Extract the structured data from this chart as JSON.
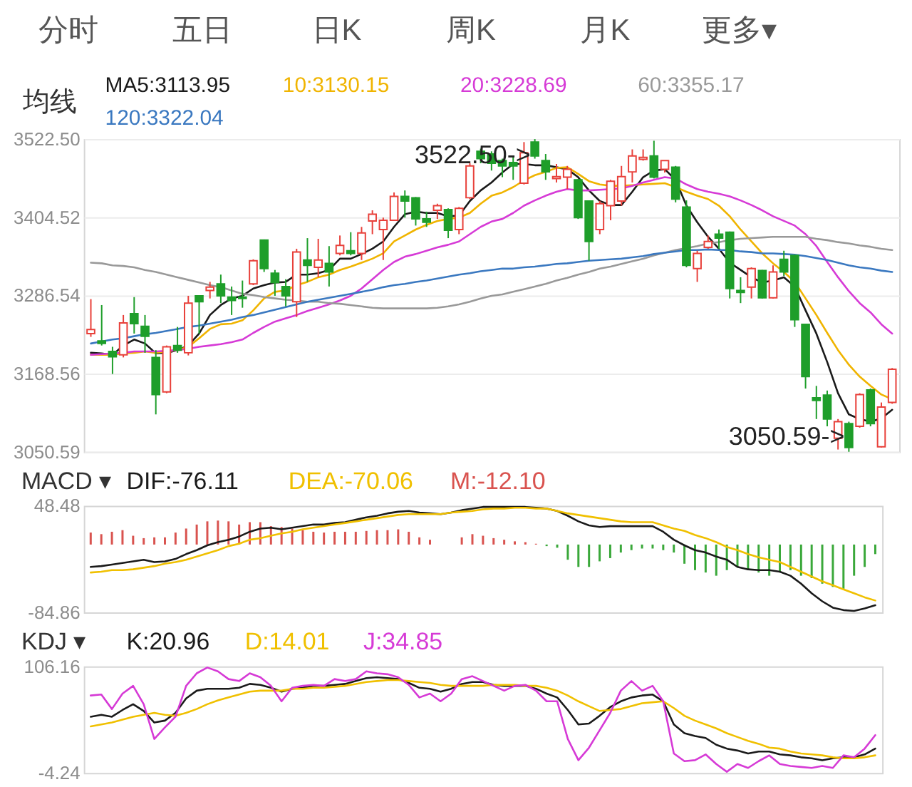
{
  "chart_data": [
    {
      "type": "candlestick",
      "annotations": [
        "分时",
        "五日",
        "日K",
        "周K",
        "月K",
        "更多▾",
        "3522.50->",
        "3050.59->"
      ],
      "legend_title": "均线",
      "legend": "top left",
      "grid": "y",
      "tick_labels": "y",
      "categories": [
        null,
        null,
        null,
        null,
        null,
        null,
        null,
        null,
        null,
        null,
        null,
        null,
        null,
        null,
        null,
        null,
        null,
        null,
        null,
        null,
        null,
        null,
        null,
        null,
        null,
        null,
        null,
        null,
        null,
        null,
        null,
        null,
        null,
        null,
        null,
        null,
        null,
        null,
        null,
        null,
        null,
        null,
        null,
        null,
        null,
        null,
        null,
        null,
        null,
        null,
        null,
        null,
        null,
        null,
        null,
        null,
        null,
        null,
        null,
        null,
        null,
        null,
        null,
        null,
        null,
        null,
        null,
        null,
        null,
        null,
        null,
        null,
        null,
        null,
        null
      ],
      "ohlc": [
        [
          3229,
          3281,
          3224,
          3235
        ],
        [
          3218,
          3272,
          3211,
          3214
        ],
        [
          3202,
          3209,
          3168,
          3194
        ],
        [
          3197,
          3257,
          3193,
          3245
        ],
        [
          3259,
          3284,
          3229,
          3244
        ],
        [
          3240,
          3257,
          3200,
          3225
        ],
        [
          3193,
          3204,
          3107,
          3137
        ],
        [
          3141,
          3211,
          3139,
          3209
        ],
        [
          3211,
          3239,
          3200,
          3204
        ],
        [
          3200,
          3286,
          3196,
          3275
        ],
        [
          3286,
          3287,
          3229,
          3277
        ],
        [
          3294,
          3307,
          3282,
          3299
        ],
        [
          3304,
          3318,
          3275,
          3286
        ],
        [
          3284,
          3300,
          3257,
          3279
        ],
        [
          3284,
          3309,
          3268,
          3282
        ],
        [
          3304,
          3341,
          3302,
          3339
        ],
        [
          3370,
          3371,
          3322,
          3327
        ],
        [
          3320,
          3325,
          3286,
          3306
        ],
        [
          3300,
          3311,
          3270,
          3286
        ],
        [
          3277,
          3357,
          3254,
          3352
        ],
        [
          3340,
          3373,
          3307,
          3332
        ],
        [
          3329,
          3372,
          3314,
          3340
        ],
        [
          3335,
          3361,
          3300,
          3322
        ],
        [
          3350,
          3377,
          3347,
          3362
        ],
        [
          3354,
          3382,
          3347,
          3350
        ],
        [
          3350,
          3390,
          3340,
          3381
        ],
        [
          3399,
          3415,
          3379,
          3409
        ],
        [
          3386,
          3404,
          3340,
          3400
        ],
        [
          3400,
          3442,
          3399,
          3436
        ],
        [
          3436,
          3445,
          3404,
          3429
        ],
        [
          3434,
          3435,
          3392,
          3402
        ],
        [
          3402,
          3413,
          3390,
          3397
        ],
        [
          3415,
          3425,
          3402,
          3422
        ],
        [
          3416,
          3418,
          3373,
          3385
        ],
        [
          3386,
          3420,
          3379,
          3418
        ],
        [
          3434,
          3486,
          3432,
          3482
        ],
        [
          3504,
          3508,
          3486,
          3493
        ],
        [
          3500,
          3504,
          3475,
          3486
        ],
        [
          3490,
          3493,
          3465,
          3482
        ],
        [
          3487,
          3497,
          3461,
          3482
        ],
        [
          3456,
          3518,
          3454,
          3502
        ],
        [
          3518,
          3522.5,
          3493,
          3497
        ],
        [
          3490,
          3500,
          3461,
          3473
        ],
        [
          3463,
          3485,
          3457,
          3466
        ],
        [
          3465,
          3482,
          3447,
          3477
        ],
        [
          3461,
          3462,
          3402,
          3404
        ],
        [
          3429,
          3430,
          3339,
          3368
        ],
        [
          3386,
          3429,
          3379,
          3425
        ],
        [
          3422,
          3461,
          3400,
          3459
        ],
        [
          3429,
          3482,
          3422,
          3466
        ],
        [
          3473,
          3507,
          3457,
          3497
        ],
        [
          3492,
          3507,
          3490,
          3495
        ],
        [
          3497,
          3520,
          3463,
          3465
        ],
        [
          3477,
          3490,
          3472,
          3490
        ],
        [
          3480,
          3482,
          3427,
          3432
        ],
        [
          3420,
          3430,
          3329,
          3332
        ],
        [
          3327,
          3354,
          3307,
          3350
        ],
        [
          3359,
          3377,
          3357,
          3368
        ],
        [
          3379,
          3386,
          3357,
          3373
        ],
        [
          3382,
          3383,
          3282,
          3297
        ],
        [
          3294,
          3314,
          3275,
          3291
        ],
        [
          3299,
          3329,
          3282,
          3327
        ],
        [
          3324,
          3325,
          3282,
          3283
        ],
        [
          3283,
          3332,
          3282,
          3322
        ],
        [
          3341,
          3354,
          3316,
          3322
        ],
        [
          3347,
          3348,
          3239,
          3250
        ],
        [
          3243,
          3244,
          3146,
          3164
        ],
        [
          3132,
          3150,
          3100,
          3128
        ],
        [
          3136,
          3143,
          3089,
          3100
        ],
        [
          3071,
          3100,
          3054,
          3096
        ],
        [
          3093,
          3096,
          3050.59,
          3057
        ],
        [
          3089,
          3139,
          3087,
          3137
        ],
        [
          3144,
          3146,
          3089,
          3093
        ],
        [
          3058,
          3125,
          3057,
          3118
        ],
        [
          3125,
          3177,
          3123,
          3175
        ]
      ],
      "colors": [
        "#e8403a",
        "#1e9e2a",
        "#1e9e2a",
        "#e8403a",
        "#1e9e2a",
        "#1e9e2a",
        "#1e9e2a",
        "#e8403a",
        "#1e9e2a",
        "#e8403a",
        "#1e9e2a",
        "#e8403a",
        "#1e9e2a",
        "#1e9e2a",
        "#1e9e2a",
        "#e8403a",
        "#1e9e2a",
        "#1e9e2a",
        "#1e9e2a",
        "#e8403a",
        "#1e9e2a",
        "#e8403a",
        "#1e9e2a",
        "#e8403a",
        "#1e9e2a",
        "#e8403a",
        "#e8403a",
        "#e8403a",
        "#e8403a",
        "#1e9e2a",
        "#1e9e2a",
        "#1e9e2a",
        "#e8403a",
        "#1e9e2a",
        "#e8403a",
        "#e8403a",
        "#1e9e2a",
        "#1e9e2a",
        "#1e9e2a",
        "#1e9e2a",
        "#e8403a",
        "#1e9e2a",
        "#1e9e2a",
        "#e8403a",
        "#e8403a",
        "#1e9e2a",
        "#1e9e2a",
        "#e8403a",
        "#e8403a",
        "#e8403a",
        "#e8403a",
        "#e8403a",
        "#1e9e2a",
        "#e8403a",
        "#1e9e2a",
        "#1e9e2a",
        "#e8403a",
        "#e8403a",
        "#1e9e2a",
        "#1e9e2a",
        "#1e9e2a",
        "#e8403a",
        "#1e9e2a",
        "#e8403a",
        "#1e9e2a",
        "#1e9e2a",
        "#1e9e2a",
        "#1e9e2a",
        "#1e9e2a",
        "#e8403a",
        "#1e9e2a",
        "#e8403a",
        "#1e9e2a",
        "#e8403a",
        "#e8403a"
      ],
      "series": [
        {
          "name": "MA5:3113.95",
          "type": "line",
          "color": "#1a1a1a",
          "values": [
            3200,
            3199,
            3197,
            3211,
            3220,
            3214,
            3199,
            3200,
            3204,
            3211,
            3229,
            3257,
            3272,
            3282,
            3286,
            3297,
            3302,
            3306,
            3307,
            3318,
            3318,
            3320,
            3325,
            3342,
            3342,
            3349,
            3357,
            3368,
            3390,
            3409,
            3413,
            3411,
            3411,
            3406,
            3407,
            3429,
            3445,
            3457,
            3472,
            3485,
            3485,
            3483,
            3483,
            3480,
            3477,
            3465,
            3445,
            3429,
            3423,
            3423,
            3443,
            3465,
            3475,
            3477,
            3461,
            3422,
            3397,
            3375,
            3357,
            3336,
            3325,
            3314,
            3306,
            3309,
            3314,
            3300,
            3264,
            3229,
            3186,
            3139,
            3107,
            3100,
            3096,
            3101,
            3114
          ]
        },
        {
          "name": "10:3130.15",
          "type": "line",
          "color": "#f0b400",
          "values": [
            3197,
            3197,
            3197,
            3199,
            3200,
            3202,
            3200,
            3202,
            3204,
            3209,
            3222,
            3236,
            3243,
            3244,
            3249,
            3264,
            3282,
            3292,
            3294,
            3302,
            3307,
            3314,
            3318,
            3325,
            3330,
            3336,
            3342,
            3350,
            3368,
            3377,
            3386,
            3393,
            3399,
            3402,
            3404,
            3411,
            3425,
            3437,
            3442,
            3450,
            3460,
            3468,
            3473,
            3479,
            3480,
            3470,
            3459,
            3454,
            3452,
            3452,
            3453,
            3454,
            3455,
            3456,
            3450,
            3443,
            3437,
            3432,
            3422,
            3406,
            3386,
            3368,
            3350,
            3335,
            3322,
            3307,
            3282,
            3257,
            3230,
            3204,
            3182,
            3164,
            3150,
            3137,
            3130
          ]
        },
        {
          "name": "20:3228.69",
          "type": "line",
          "color": "#d63ad6",
          "values": [
            3197,
            3198,
            3199,
            3200,
            3202,
            3202,
            3202,
            3203,
            3204,
            3206,
            3209,
            3211,
            3213,
            3216,
            3220,
            3230,
            3239,
            3247,
            3252,
            3257,
            3263,
            3268,
            3273,
            3279,
            3286,
            3297,
            3311,
            3325,
            3337,
            3345,
            3349,
            3354,
            3359,
            3363,
            3368,
            3379,
            3390,
            3398,
            3402,
            3411,
            3422,
            3430,
            3437,
            3443,
            3447,
            3445,
            3445,
            3446,
            3447,
            3448,
            3452,
            3457,
            3461,
            3465,
            3463,
            3454,
            3447,
            3443,
            3440,
            3436,
            3430,
            3423,
            3415,
            3406,
            3399,
            3392,
            3379,
            3361,
            3337,
            3314,
            3293,
            3275,
            3261,
            3243,
            3229
          ]
        },
        {
          "name": "60:3355.17",
          "type": "line",
          "color": "#999999",
          "values": [
            3336,
            3335,
            3332,
            3331,
            3329,
            3325,
            3322,
            3318,
            3314,
            3310,
            3306,
            3302,
            3299,
            3294,
            3289,
            3287,
            3284,
            3282,
            3280,
            3279,
            3277,
            3277,
            3275,
            3274,
            3272,
            3270,
            3268,
            3267,
            3267,
            3267,
            3267,
            3267,
            3268,
            3270,
            3273,
            3277,
            3282,
            3286,
            3288,
            3292,
            3296,
            3300,
            3304,
            3309,
            3313,
            3318,
            3322,
            3327,
            3330,
            3334,
            3338,
            3342,
            3347,
            3351,
            3355,
            3358,
            3361,
            3365,
            3367,
            3370,
            3372,
            3373,
            3374,
            3375,
            3375,
            3375,
            3375,
            3372,
            3370,
            3367,
            3365,
            3362,
            3360,
            3357,
            3355
          ]
        },
        {
          "name": "120:3322.04",
          "type": "line",
          "color": "#3a78c0",
          "values": [
            3214,
            3217,
            3220,
            3222,
            3225,
            3228,
            3230,
            3233,
            3236,
            3239,
            3241,
            3244,
            3247,
            3250,
            3254,
            3257,
            3261,
            3265,
            3269,
            3273,
            3277,
            3280,
            3283,
            3286,
            3289,
            3292,
            3295,
            3299,
            3302,
            3304,
            3307,
            3309,
            3312,
            3315,
            3318,
            3320,
            3323,
            3325,
            3327,
            3327,
            3329,
            3330,
            3332,
            3334,
            3335,
            3337,
            3339,
            3340,
            3341,
            3342,
            3344,
            3346,
            3349,
            3351,
            3353,
            3355,
            3355,
            3356,
            3355,
            3355,
            3353,
            3352,
            3350,
            3350,
            3349,
            3348,
            3346,
            3343,
            3340,
            3336,
            3332,
            3329,
            3327,
            3324,
            3322
          ]
        }
      ],
      "ylim": [
        3050.59,
        3522.5
      ],
      "yticks": [
        3050.59,
        3168.56,
        3286.54,
        3404.52,
        {
          "value": 3522.5,
          "label": "3522.50"
        }
      ]
    },
    {
      "type": "line",
      "title": "MACD ▾",
      "legend": "top left",
      "tick_labels": "y",
      "categories": [
        null,
        null,
        null,
        null,
        null,
        null,
        null,
        null,
        null,
        null,
        null,
        null,
        null,
        null,
        null,
        null,
        null,
        null,
        null,
        null,
        null,
        null,
        null,
        null,
        null,
        null,
        null,
        null,
        null,
        null,
        null,
        null,
        null,
        null,
        null,
        null,
        null,
        null,
        null,
        null,
        null,
        null,
        null,
        null,
        null,
        null,
        null,
        null,
        null,
        null,
        null,
        null,
        null,
        null,
        null,
        null,
        null,
        null,
        null,
        null,
        null,
        null,
        null,
        null,
        null,
        null,
        null,
        null,
        null,
        null,
        null,
        null,
        null,
        null,
        null
      ],
      "series": [
        {
          "name": "DIF:-76.11",
          "color": "#1a1a1a",
          "values": [
            -28,
            -27,
            -25,
            -23,
            -21,
            -19,
            -22,
            -21,
            -18,
            -12,
            -7,
            -1,
            3,
            6,
            10,
            16,
            20,
            21,
            19,
            21,
            23,
            25,
            25,
            27,
            28,
            31,
            34,
            36,
            39,
            41,
            42,
            40,
            39,
            38,
            40,
            43,
            45,
            47,
            47,
            47,
            47,
            47,
            46,
            45,
            42,
            36,
            29,
            24,
            22,
            23,
            23,
            23,
            23,
            23,
            16,
            6,
            -1,
            -7,
            -10,
            -15,
            -19,
            -28,
            -31,
            -32,
            -32,
            -34,
            -39,
            -49,
            -61,
            -71,
            -79,
            -82,
            -83,
            -80,
            -76
          ]
        },
        {
          "name": "DEA:-70.06",
          "color": "#f0c000",
          "values": [
            -35,
            -34,
            -32,
            -32,
            -31,
            -29,
            -27,
            -24,
            -22,
            -19,
            -15,
            -11,
            -7,
            -2,
            1,
            6,
            8,
            11,
            14,
            16,
            19,
            21,
            23,
            25,
            27,
            29,
            31,
            33,
            35,
            37,
            38,
            38,
            38,
            38,
            40,
            41,
            42,
            44,
            45,
            45,
            46,
            46,
            45,
            45,
            42,
            39,
            37,
            35,
            33,
            31,
            29,
            28,
            28,
            28,
            24,
            20,
            17,
            12,
            8,
            3,
            -3,
            -7,
            -12,
            -16,
            -19,
            -22,
            -28,
            -34,
            -40,
            -46,
            -51,
            -56,
            -61,
            -66,
            -70
          ]
        },
        {
          "name": "M:-12.10",
          "type": "bar",
          "color": "#d9534f",
          "colors": [
            "#d9534f",
            "#d9534f",
            "#d9534f",
            "#d9534f",
            "#d9534f",
            "#d9534f",
            "#d9534f",
            "#d9534f",
            "#d9534f",
            "#d9534f",
            "#d9534f",
            "#d9534f",
            "#d9534f",
            "#d9534f",
            "#d9534f",
            "#d9534f",
            "#d9534f",
            "#d9534f",
            "#d9534f",
            "#d9534f",
            "#d9534f",
            "#d9534f",
            "#d9534f",
            "#d9534f",
            "#d9534f",
            "#d9534f",
            "#d9534f",
            "#d9534f",
            "#d9534f",
            "#d9534f",
            "#d9534f",
            "#d9534f",
            "#d9534f",
            "#d9534f",
            "#d9534f",
            "#d9534f",
            "#d9534f",
            "#d9534f",
            "#d9534f",
            "#d9534f",
            "#d9534f",
            "#d9534f",
            "#d9534f",
            "#3aa83a",
            "#3aa83a",
            "#3aa83a",
            "#3aa83a",
            "#3aa83a",
            "#3aa83a",
            "#3aa83a",
            "#3aa83a",
            "#3aa83a",
            "#3aa83a",
            "#3aa83a",
            "#3aa83a",
            "#3aa83a",
            "#3aa83a",
            "#3aa83a",
            "#3aa83a",
            "#3aa83a",
            "#3aa83a",
            "#3aa83a",
            "#3aa83a",
            "#3aa83a",
            "#3aa83a",
            "#3aa83a",
            "#3aa83a",
            "#3aa83a",
            "#3aa83a",
            "#3aa83a",
            "#3aa83a",
            "#3aa83a",
            "#3aa83a",
            "#3aa83a",
            "#3aa83a"
          ],
          "values": [
            15,
            13,
            16,
            18,
            11,
            8,
            9,
            9,
            15,
            20,
            25,
            29,
            30,
            29,
            25,
            28,
            28,
            23,
            22,
            20,
            18,
            16,
            15,
            16,
            16,
            16,
            17,
            18,
            18,
            19,
            16,
            9,
            6,
            null,
            null,
            9,
            13,
            11,
            8,
            6,
            4,
            3,
            1,
            -2,
            -4,
            -19,
            -28,
            -28,
            -21,
            -17,
            -10,
            -7,
            -5,
            -5,
            -7,
            -10,
            -24,
            -32,
            -35,
            -39,
            -32,
            -28,
            -32,
            -35,
            -39,
            -35,
            -32,
            -39,
            -42,
            -49,
            -53,
            -56,
            -39,
            -28,
            -12
          ]
        }
      ],
      "ylim": [
        -84.86,
        48.48
      ],
      "yticks": [
        -84.86,
        48.48
      ]
    },
    {
      "type": "line",
      "title": "KDJ ▾",
      "legend": "top left",
      "tick_labels": "y",
      "categories": [
        null,
        null,
        null,
        null,
        null,
        null,
        null,
        null,
        null,
        null,
        null,
        null,
        null,
        null,
        null,
        null,
        null,
        null,
        null,
        null,
        null,
        null,
        null,
        null,
        null,
        null,
        null,
        null,
        null,
        null,
        null,
        null,
        null,
        null,
        null,
        null,
        null,
        null,
        null,
        null,
        null,
        null,
        null,
        null,
        null,
        null,
        null,
        null,
        null,
        null,
        null,
        null,
        null,
        null,
        null,
        null,
        null,
        null,
        null,
        null,
        null,
        null,
        null,
        null,
        null,
        null,
        null,
        null,
        null,
        null,
        null,
        null,
        null,
        null,
        null
      ],
      "series": [
        {
          "name": "K:20.96",
          "color": "#1a1a1a",
          "values": [
            54,
            56,
            54,
            61,
            67,
            60,
            48,
            50,
            58,
            73,
            81,
            83,
            83,
            83,
            84,
            88,
            87,
            84,
            80,
            83,
            84,
            86,
            86,
            87,
            88,
            91,
            94,
            95,
            94,
            93,
            89,
            84,
            83,
            80,
            83,
            88,
            90,
            90,
            87,
            86,
            86,
            86,
            83,
            78,
            74,
            61,
            46,
            47,
            55,
            64,
            70,
            74,
            76,
            77,
            70,
            46,
            37,
            34,
            32,
            25,
            21,
            19,
            16,
            18,
            18,
            15,
            14,
            12,
            11,
            9,
            11,
            12,
            12,
            15,
            21
          ]
        },
        {
          "name": "D:14.01",
          "color": "#f0c000",
          "values": [
            44,
            46,
            48,
            51,
            54,
            56,
            58,
            56,
            55,
            58,
            62,
            67,
            71,
            74,
            77,
            80,
            81,
            81,
            81,
            83,
            83,
            84,
            84,
            85,
            86,
            88,
            90,
            91,
            92,
            92,
            91,
            90,
            89,
            87,
            86,
            86,
            86,
            86,
            87,
            87,
            87,
            86,
            86,
            84,
            81,
            76,
            70,
            65,
            60,
            61,
            62,
            65,
            68,
            69,
            70,
            63,
            55,
            50,
            46,
            42,
            37,
            33,
            29,
            26,
            22,
            21,
            18,
            16,
            15,
            14,
            12,
            11,
            11,
            12,
            14
          ]
        },
        {
          "name": "J:34.85",
          "color": "#d63ad6",
          "values": [
            76,
            77,
            62,
            78,
            86,
            67,
            31,
            43,
            54,
            86,
            99,
            105,
            101,
            93,
            91,
            99,
            95,
            86,
            70,
            84,
            86,
            87,
            86,
            93,
            91,
            93,
            101,
            99,
            98,
            95,
            87,
            74,
            78,
            70,
            78,
            93,
            96,
            91,
            86,
            81,
            86,
            87,
            81,
            70,
            70,
            31,
            9,
            22,
            40,
            58,
            81,
            91,
            81,
            86,
            70,
            16,
            8,
            9,
            15,
            5,
            -3,
            5,
            1,
            8,
            14,
            5,
            3,
            2,
            1,
            3,
            1,
            14,
            12,
            21,
            35
          ]
        }
      ],
      "ylim": [
        -4.24,
        106.16
      ],
      "yticks": [
        -4.24,
        106.16
      ]
    }
  ]
}
